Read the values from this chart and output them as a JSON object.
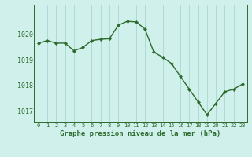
{
  "x": [
    0,
    1,
    2,
    3,
    4,
    5,
    6,
    7,
    8,
    9,
    10,
    11,
    12,
    13,
    14,
    15,
    16,
    17,
    18,
    19,
    20,
    21,
    22,
    23
  ],
  "y": [
    1019.65,
    1019.75,
    1019.65,
    1019.65,
    1019.35,
    1019.48,
    1019.75,
    1019.8,
    1019.82,
    1020.35,
    1020.5,
    1020.48,
    1020.2,
    1019.3,
    1019.1,
    1018.85,
    1018.35,
    1017.85,
    1017.35,
    1016.85,
    1017.3,
    1017.75,
    1017.85,
    1018.05
  ],
  "line_color": "#2d6a2d",
  "marker_color": "#2d6a2d",
  "bg_color": "#cff0eb",
  "grid_color": "#aad8d0",
  "axis_color": "#2d6a2d",
  "title": "Graphe pression niveau de la mer (hPa)",
  "title_color": "#2d6a2d",
  "ylim": [
    1016.55,
    1021.15
  ],
  "yticks": [
    1017,
    1018,
    1019,
    1020
  ],
  "xticks": [
    0,
    1,
    2,
    3,
    4,
    5,
    6,
    7,
    8,
    9,
    10,
    11,
    12,
    13,
    14,
    15,
    16,
    17,
    18,
    19,
    20,
    21,
    22,
    23
  ],
  "xlim": [
    -0.5,
    23.5
  ]
}
